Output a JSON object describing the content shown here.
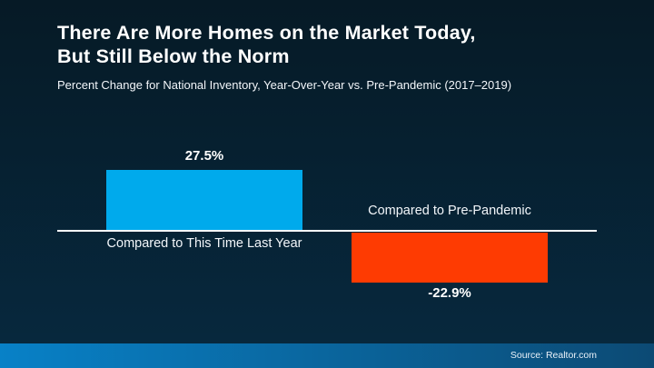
{
  "slide": {
    "title_line1": "There Are More Homes on the Market Today,",
    "title_line2": "But Still Below the Norm",
    "subtitle": "Percent Change for National Inventory, Year-Over-Year vs. Pre-Pandemic (2017–2019)",
    "source": "Source: Realtor.com"
  },
  "colors": {
    "background_top": "#061a26",
    "background_bottom": "#07293f",
    "positive_bar": "#00aaec",
    "negative_bar": "#fe3b02",
    "axis_line": "#ffffff",
    "footer_left": "#0881c7",
    "footer_right": "#0c4a74"
  },
  "chart_data": {
    "type": "bar",
    "title": "There Are More Homes on the Market Today, But Still Below the Norm",
    "subtitle": "Percent Change for National Inventory, Year-Over-Year vs. Pre-Pandemic (2017–2019)",
    "categories": [
      "Compared to This Time Last Year",
      "Compared to Pre-Pandemic"
    ],
    "values": [
      27.5,
      -22.9
    ],
    "value_labels": [
      "27.5%",
      "-22.9%"
    ],
    "series_colors": [
      "#00aaec",
      "#fe3b02"
    ],
    "baseline": 0,
    "ylim": [
      -30,
      35
    ],
    "xlabel": "",
    "ylabel": "",
    "grid": false,
    "legend": false,
    "source": "Source: Realtor.com"
  }
}
